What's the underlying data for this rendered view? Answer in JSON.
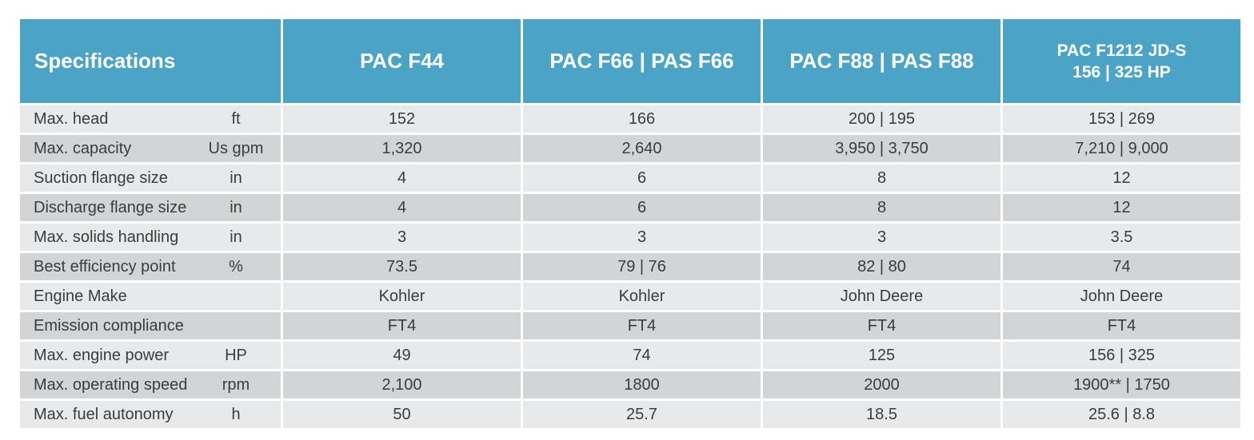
{
  "colors": {
    "header_bg": "#4ba3c6",
    "header_text": "#ffffff",
    "row_light": "#e8e9ea",
    "row_dark": "#d2d4d5",
    "body_text": "#3c3c3c"
  },
  "table": {
    "header": {
      "spec_label": "Specifications",
      "columns": [
        {
          "line1": "PAC F44",
          "line2": ""
        },
        {
          "line1": "PAC F66 | PAS F66",
          "line2": ""
        },
        {
          "line1": "PAC F88 | PAS F88",
          "line2": ""
        },
        {
          "line1": "PAC F1212 JD-S",
          "line2": "156 | 325 HP"
        }
      ]
    },
    "rows": [
      {
        "label": "Max. head",
        "unit": "ft",
        "values": [
          "152",
          "166",
          "200 | 195",
          "153 | 269"
        ]
      },
      {
        "label": "Max. capacity",
        "unit": "Us gpm",
        "values": [
          "1,320",
          "2,640",
          "3,950 | 3,750",
          "7,210 | 9,000"
        ]
      },
      {
        "label": "Suction flange size",
        "unit": "in",
        "values": [
          "4",
          "6",
          "8",
          "12"
        ]
      },
      {
        "label": "Discharge flange size",
        "unit": "in",
        "values": [
          "4",
          "6",
          "8",
          "12"
        ]
      },
      {
        "label": "Max. solids handling",
        "unit": "in",
        "values": [
          "3",
          "3",
          "3",
          "3.5"
        ]
      },
      {
        "label": "Best efficiency point",
        "unit": "%",
        "values": [
          "73.5",
          "79 | 76",
          "82 | 80",
          "74"
        ]
      },
      {
        "label": "Engine Make",
        "unit": "",
        "values": [
          "Kohler",
          "Kohler",
          "John Deere",
          "John Deere"
        ]
      },
      {
        "label": "Emission compliance",
        "unit": "",
        "values": [
          "FT4",
          "FT4",
          "FT4",
          "FT4"
        ]
      },
      {
        "label": "Max. engine power",
        "unit": "HP",
        "values": [
          "49",
          "74",
          "125",
          "156 | 325"
        ]
      },
      {
        "label": "Max. operating speed",
        "unit": "rpm",
        "values": [
          "2,100",
          "1800",
          "2000",
          "1900** | 1750"
        ]
      },
      {
        "label": "Max. fuel autonomy",
        "unit": "h",
        "values": [
          "50",
          "25.7",
          "18.5",
          "25.6 | 8.8"
        ]
      }
    ]
  }
}
